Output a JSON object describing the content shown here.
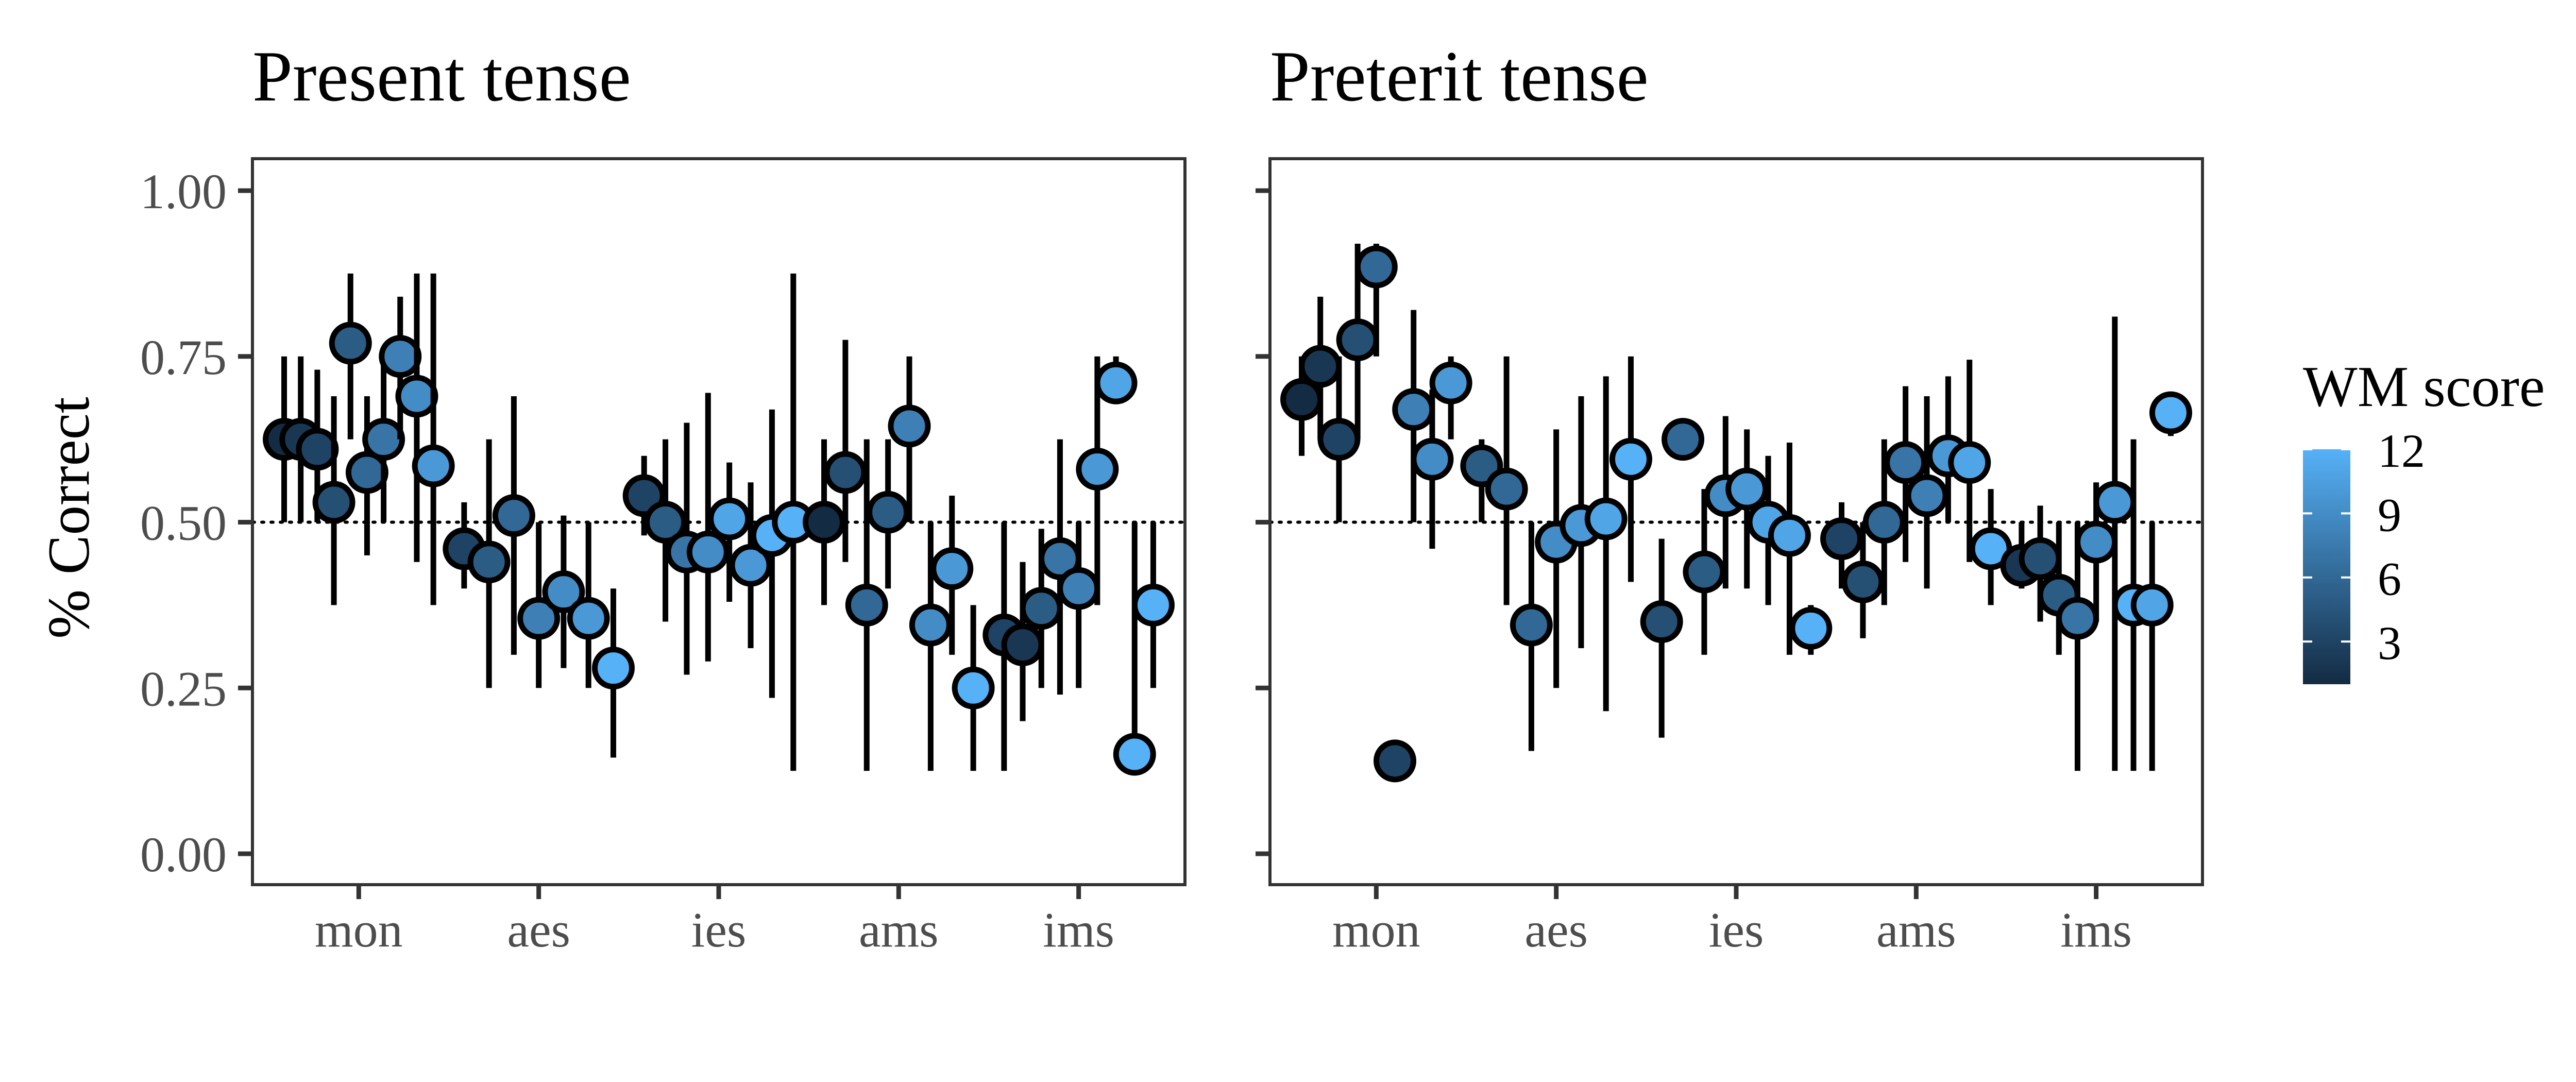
{
  "figure": {
    "ylabel": "% Correct",
    "legend_title": "WM score",
    "legend_ticks": [
      "12",
      "9",
      "6",
      "3"
    ]
  },
  "chart_data": [
    {
      "type": "scatter",
      "title": "Present tense",
      "xlabel": "",
      "ylabel": "% Correct",
      "categories": [
        "mon",
        "aes",
        "ies",
        "ams",
        "ims"
      ],
      "y_ticks": [
        "0.00",
        "0.25",
        "0.50",
        "0.75",
        "1.00"
      ],
      "ylim": [
        0,
        1
      ],
      "reference_line": 0.5,
      "grid": false,
      "legend_position": "right",
      "color_scale": {
        "name": "WM score",
        "min": 1,
        "max": 12,
        "low_color": "#132B43",
        "high_color": "#56B1F7"
      },
      "groups": [
        {
          "category": "mon",
          "points": [
            {
              "wm": 1,
              "y": 0.625,
              "lo": 0.5,
              "hi": 0.75
            },
            {
              "wm": 2,
              "y": 0.625,
              "lo": 0.5,
              "hi": 0.75
            },
            {
              "wm": 3,
              "y": 0.61,
              "lo": 0.5,
              "hi": 0.73
            },
            {
              "wm": 4,
              "y": 0.53,
              "lo": 0.375,
              "hi": 0.69
            },
            {
              "wm": 5,
              "y": 0.77,
              "lo": 0.625,
              "hi": 0.875
            },
            {
              "wm": 6,
              "y": 0.575,
              "lo": 0.45,
              "hi": 0.69
            },
            {
              "wm": 7,
              "y": 0.625,
              "lo": 0.5,
              "hi": 0.75
            },
            {
              "wm": 8,
              "y": 0.75,
              "lo": 0.625,
              "hi": 0.84
            },
            {
              "wm": 9,
              "y": 0.69,
              "lo": 0.44,
              "hi": 0.875
            },
            {
              "wm": 10,
              "y": 0.585,
              "lo": 0.375,
              "hi": 0.875
            }
          ]
        },
        {
          "category": "aes",
          "points": [
            {
              "wm": 3,
              "y": 0.46,
              "lo": 0.4,
              "hi": 0.53
            },
            {
              "wm": 5,
              "y": 0.44,
              "lo": 0.25,
              "hi": 0.625
            },
            {
              "wm": 6,
              "y": 0.51,
              "lo": 0.3,
              "hi": 0.69
            },
            {
              "wm": 8,
              "y": 0.355,
              "lo": 0.25,
              "hi": 0.5
            },
            {
              "wm": 9,
              "y": 0.395,
              "lo": 0.28,
              "hi": 0.51
            },
            {
              "wm": 10,
              "y": 0.355,
              "lo": 0.25,
              "hi": 0.5
            },
            {
              "wm": 12,
              "y": 0.28,
              "lo": 0.145,
              "hi": 0.4
            }
          ]
        },
        {
          "category": "ies",
          "points": [
            {
              "wm": 3,
              "y": 0.54,
              "lo": 0.48,
              "hi": 0.6
            },
            {
              "wm": 5,
              "y": 0.5,
              "lo": 0.35,
              "hi": 0.625
            },
            {
              "wm": 7,
              "y": 0.455,
              "lo": 0.27,
              "hi": 0.65
            },
            {
              "wm": 9,
              "y": 0.455,
              "lo": 0.29,
              "hi": 0.695
            },
            {
              "wm": 11,
              "y": 0.505,
              "lo": 0.38,
              "hi": 0.59
            },
            {
              "wm": 10,
              "y": 0.435,
              "lo": 0.31,
              "hi": 0.56
            },
            {
              "wm": 12,
              "y": 0.48,
              "lo": 0.235,
              "hi": 0.67
            },
            {
              "wm": 12,
              "y": 0.5,
              "lo": 0.125,
              "hi": 0.875
            }
          ]
        },
        {
          "category": "ams",
          "points": [
            {
              "wm": 1,
              "y": 0.5,
              "lo": 0.375,
              "hi": 0.625
            },
            {
              "wm": 4,
              "y": 0.575,
              "lo": 0.44,
              "hi": 0.775
            },
            {
              "wm": 6,
              "y": 0.375,
              "lo": 0.125,
              "hi": 0.625
            },
            {
              "wm": 5,
              "y": 0.515,
              "lo": 0.4,
              "hi": 0.625
            },
            {
              "wm": 8,
              "y": 0.645,
              "lo": 0.5,
              "hi": 0.75
            },
            {
              "wm": 9,
              "y": 0.345,
              "lo": 0.125,
              "hi": 0.5
            },
            {
              "wm": 10,
              "y": 0.43,
              "lo": 0.3,
              "hi": 0.54
            },
            {
              "wm": 12,
              "y": 0.25,
              "lo": 0.125,
              "hi": 0.375
            }
          ]
        },
        {
          "category": "ims",
          "points": [
            {
              "wm": 3,
              "y": 0.33,
              "lo": 0.125,
              "hi": 0.5
            },
            {
              "wm": 2,
              "y": 0.315,
              "lo": 0.2,
              "hi": 0.44
            },
            {
              "wm": 5,
              "y": 0.37,
              "lo": 0.25,
              "hi": 0.49
            },
            {
              "wm": 7,
              "y": 0.445,
              "lo": 0.24,
              "hi": 0.625
            },
            {
              "wm": 8,
              "y": 0.4,
              "lo": 0.25,
              "hi": 0.5
            },
            {
              "wm": 10,
              "y": 0.58,
              "lo": 0.375,
              "hi": 0.75
            },
            {
              "wm": 11,
              "y": 0.71,
              "lo": 0.69,
              "hi": 0.75
            },
            {
              "wm": 12,
              "y": 0.15,
              "lo": 0.14,
              "hi": 0.5
            },
            {
              "wm": 12,
              "y": 0.375,
              "lo": 0.25,
              "hi": 0.5
            }
          ]
        }
      ]
    },
    {
      "type": "scatter",
      "title": "Preterit tense",
      "xlabel": "",
      "ylabel": "",
      "categories": [
        "mon",
        "aes",
        "ies",
        "ams",
        "ims"
      ],
      "y_ticks": [
        "0.00",
        "0.25",
        "0.50",
        "0.75",
        "1.00"
      ],
      "ylim": [
        0,
        1
      ],
      "reference_line": 0.5,
      "grid": false,
      "legend_position": "right",
      "color_scale": {
        "name": "WM score",
        "min": 1,
        "max": 12,
        "low_color": "#132B43",
        "high_color": "#56B1F7"
      },
      "groups": [
        {
          "category": "mon",
          "points": [
            {
              "wm": 1,
              "y": 0.685,
              "lo": 0.6,
              "hi": 0.75
            },
            {
              "wm": 2,
              "y": 0.735,
              "lo": 0.625,
              "hi": 0.84
            },
            {
              "wm": 3,
              "y": 0.625,
              "lo": 0.5,
              "hi": 0.75
            },
            {
              "wm": 4,
              "y": 0.775,
              "lo": 0.625,
              "hi": 0.92
            },
            {
              "wm": 6,
              "y": 0.885,
              "lo": 0.75,
              "hi": 0.92
            },
            {
              "wm": 3,
              "y": 0.14,
              "lo": 0.13,
              "hi": 0.15
            },
            {
              "wm": 8,
              "y": 0.67,
              "lo": 0.5,
              "hi": 0.82
            },
            {
              "wm": 9,
              "y": 0.595,
              "lo": 0.46,
              "hi": 0.7
            },
            {
              "wm": 10,
              "y": 0.71,
              "lo": 0.625,
              "hi": 0.75
            }
          ]
        },
        {
          "category": "aes",
          "points": [
            {
              "wm": 5,
              "y": 0.585,
              "lo": 0.5,
              "hi": 0.625
            },
            {
              "wm": 6,
              "y": 0.55,
              "lo": 0.375,
              "hi": 0.75
            },
            {
              "wm": 6,
              "y": 0.345,
              "lo": 0.155,
              "hi": 0.5
            },
            {
              "wm": 9,
              "y": 0.47,
              "lo": 0.25,
              "hi": 0.64
            },
            {
              "wm": 10,
              "y": 0.495,
              "lo": 0.31,
              "hi": 0.69
            },
            {
              "wm": 11,
              "y": 0.505,
              "lo": 0.215,
              "hi": 0.72
            },
            {
              "wm": 12,
              "y": 0.595,
              "lo": 0.41,
              "hi": 0.75
            }
          ]
        },
        {
          "category": "ies",
          "points": [
            {
              "wm": 4,
              "y": 0.35,
              "lo": 0.175,
              "hi": 0.475
            },
            {
              "wm": 6,
              "y": 0.625,
              "lo": 0.6,
              "hi": 0.65
            },
            {
              "wm": 5,
              "y": 0.425,
              "lo": 0.3,
              "hi": 0.55
            },
            {
              "wm": 9,
              "y": 0.54,
              "lo": 0.4,
              "hi": 0.66
            },
            {
              "wm": 10,
              "y": 0.55,
              "lo": 0.4,
              "hi": 0.64
            },
            {
              "wm": 11,
              "y": 0.5,
              "lo": 0.375,
              "hi": 0.6
            },
            {
              "wm": 11,
              "y": 0.48,
              "lo": 0.3,
              "hi": 0.62
            },
            {
              "wm": 12,
              "y": 0.34,
              "lo": 0.3,
              "hi": 0.375
            }
          ]
        },
        {
          "category": "ams",
          "points": [
            {
              "wm": 3,
              "y": 0.475,
              "lo": 0.4,
              "hi": 0.53
            },
            {
              "wm": 4,
              "y": 0.41,
              "lo": 0.325,
              "hi": 0.5
            },
            {
              "wm": 6,
              "y": 0.5,
              "lo": 0.375,
              "hi": 0.625
            },
            {
              "wm": 7,
              "y": 0.59,
              "lo": 0.44,
              "hi": 0.705
            },
            {
              "wm": 8,
              "y": 0.54,
              "lo": 0.4,
              "hi": 0.69
            },
            {
              "wm": 10,
              "y": 0.6,
              "lo": 0.5,
              "hi": 0.72
            },
            {
              "wm": 11,
              "y": 0.59,
              "lo": 0.44,
              "hi": 0.745
            },
            {
              "wm": 12,
              "y": 0.46,
              "lo": 0.375,
              "hi": 0.55
            }
          ]
        },
        {
          "category": "ims",
          "points": [
            {
              "wm": 2,
              "y": 0.435,
              "lo": 0.4,
              "hi": 0.5
            },
            {
              "wm": 4,
              "y": 0.445,
              "lo": 0.35,
              "hi": 0.525
            },
            {
              "wm": 5,
              "y": 0.39,
              "lo": 0.3,
              "hi": 0.5
            },
            {
              "wm": 7,
              "y": 0.355,
              "lo": 0.125,
              "hi": 0.5
            },
            {
              "wm": 9,
              "y": 0.47,
              "lo": 0.35,
              "hi": 0.56
            },
            {
              "wm": 10,
              "y": 0.53,
              "lo": 0.125,
              "hi": 0.81
            },
            {
              "wm": 12,
              "y": 0.375,
              "lo": 0.125,
              "hi": 0.625
            },
            {
              "wm": 11,
              "y": 0.375,
              "lo": 0.125,
              "hi": 0.5
            },
            {
              "wm": 12,
              "y": 0.665,
              "lo": 0.63,
              "hi": 0.69
            }
          ]
        }
      ]
    }
  ]
}
